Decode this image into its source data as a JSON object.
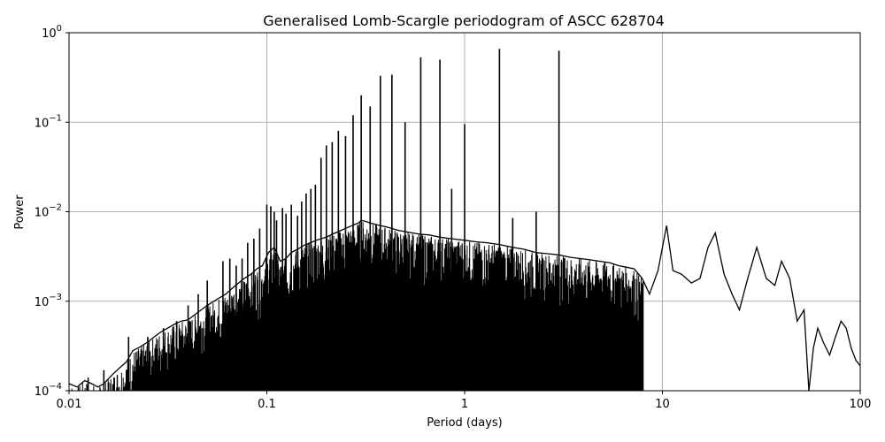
{
  "chart_data": {
    "type": "line",
    "title": "Generalised Lomb-Scargle periodogram of ASCC 628704",
    "xlabel": "Period (days)",
    "ylabel": "Power",
    "xscale": "log",
    "yscale": "log",
    "xlim": [
      0.01,
      100
    ],
    "ylim": [
      0.0001,
      1
    ],
    "grid": true,
    "x_ticks": [
      {
        "value": 0.01,
        "label": "0.01"
      },
      {
        "value": 0.1,
        "label": "0.1"
      },
      {
        "value": 1,
        "label": "1"
      },
      {
        "value": 10,
        "label": "10"
      },
      {
        "value": 100,
        "label": "100"
      }
    ],
    "y_ticks": [
      {
        "value": 0.0001,
        "base": "10",
        "exp": "−4"
      },
      {
        "value": 0.001,
        "base": "10",
        "exp": "−3"
      },
      {
        "value": 0.01,
        "base": "10",
        "exp": "−2"
      },
      {
        "value": 0.1,
        "base": "10",
        "exp": "−1"
      },
      {
        "value": 1,
        "base": "10",
        "exp": "0"
      }
    ],
    "line_color": "#000000",
    "series": [
      {
        "x": [
          0.01,
          0.011,
          0.012,
          0.013,
          0.014,
          0.015,
          0.0165,
          0.018,
          0.0195,
          0.021,
          0.023,
          0.025,
          0.027,
          0.029,
          0.0315,
          0.034,
          0.037,
          0.04,
          0.043,
          0.0465,
          0.05,
          0.054,
          0.058,
          0.062,
          0.067,
          0.072,
          0.077,
          0.083,
          0.089,
          0.095,
          0.102,
          0.109,
          0.117,
          0.125,
          0.133,
          0.143,
          0.154,
          0.166,
          0.178,
          0.188,
          0.2,
          0.214,
          0.23,
          0.25,
          0.27,
          0.29,
          0.3,
          0.315,
          0.3333,
          0.355,
          0.375,
          0.4,
          0.428,
          0.46,
          0.5,
          0.545,
          0.6,
          0.665,
          0.75,
          0.855,
          1.0,
          1.15,
          1.3,
          1.5,
          1.75,
          2.0,
          2.3,
          2.6,
          3.0,
          3.4,
          3.8,
          4.3,
          4.8,
          5.4,
          6.0,
          6.6,
          7.2,
          7.9,
          8.6,
          9.5,
          10.5,
          11.3,
          12.5,
          14.0,
          15.5,
          17.0,
          18.5,
          20.5,
          22.5,
          24.5,
          27.0,
          30.0,
          33.5,
          37.0,
          40.0,
          44.0,
          48.0,
          52.0,
          55.0,
          58.0,
          61.0,
          65.0,
          70.0,
          75.0,
          80.0,
          85.0,
          90.0,
          95.0,
          100.0
        ],
        "y": [
          0.00012,
          0.00011,
          0.00013,
          0.00012,
          0.00011,
          0.00012,
          0.00015,
          0.00018,
          0.00021,
          0.00028,
          0.00031,
          0.00035,
          0.0004,
          0.00045,
          0.0005,
          0.00055,
          0.0006,
          0.00062,
          0.0007,
          0.0008,
          0.0009,
          0.001,
          0.0011,
          0.0012,
          0.0014,
          0.0016,
          0.0018,
          0.002,
          0.0023,
          0.0025,
          0.0035,
          0.004,
          0.0028,
          0.003,
          0.0035,
          0.0038,
          0.0042,
          0.0045,
          0.0048,
          0.005,
          0.0052,
          0.0056,
          0.006,
          0.0065,
          0.007,
          0.0075,
          0.008,
          0.0078,
          0.0075,
          0.0072,
          0.007,
          0.0068,
          0.0065,
          0.0062,
          0.006,
          0.0058,
          0.0056,
          0.0055,
          0.0052,
          0.005,
          0.0048,
          0.0046,
          0.0045,
          0.0043,
          0.004,
          0.0038,
          0.0035,
          0.0034,
          0.0033,
          0.0031,
          0.003,
          0.0029,
          0.0028,
          0.0027,
          0.0025,
          0.0024,
          0.0023,
          0.0018,
          0.0012,
          0.0022,
          0.007,
          0.0022,
          0.002,
          0.0016,
          0.0018,
          0.004,
          0.0058,
          0.002,
          0.0012,
          0.0008,
          0.0018,
          0.004,
          0.0018,
          0.0015,
          0.0028,
          0.0018,
          0.0006,
          0.0008,
          0.0001,
          0.0003,
          0.0005,
          0.00035,
          0.00025,
          0.0004,
          0.0006,
          0.0005,
          0.0003,
          0.00022,
          0.00019
        ]
      }
    ],
    "peaks": [
      {
        "x": 0.1,
        "y": 0.012
      },
      {
        "x": 0.1047,
        "y": 0.0115
      },
      {
        "x": 0.109,
        "y": 0.01
      },
      {
        "x": 0.112,
        "y": 0.008
      },
      {
        "x": 0.12,
        "y": 0.011
      },
      {
        "x": 0.125,
        "y": 0.0095
      },
      {
        "x": 0.133,
        "y": 0.012
      },
      {
        "x": 0.143,
        "y": 0.009
      },
      {
        "x": 0.15,
        "y": 0.013
      },
      {
        "x": 0.158,
        "y": 0.016
      },
      {
        "x": 0.167,
        "y": 0.018
      },
      {
        "x": 0.176,
        "y": 0.02
      },
      {
        "x": 0.188,
        "y": 0.04
      },
      {
        "x": 0.2,
        "y": 0.055
      },
      {
        "x": 0.214,
        "y": 0.06
      },
      {
        "x": 0.23,
        "y": 0.08
      },
      {
        "x": 0.25,
        "y": 0.07
      },
      {
        "x": 0.273,
        "y": 0.12
      },
      {
        "x": 0.3,
        "y": 0.2
      },
      {
        "x": 0.333,
        "y": 0.15
      },
      {
        "x": 0.375,
        "y": 0.33
      },
      {
        "x": 0.429,
        "y": 0.34
      },
      {
        "x": 0.5,
        "y": 0.1
      },
      {
        "x": 0.6,
        "y": 0.53
      },
      {
        "x": 0.75,
        "y": 0.5
      },
      {
        "x": 1.0,
        "y": 0.095
      },
      {
        "x": 1.5,
        "y": 0.66
      },
      {
        "x": 3.0,
        "y": 0.63
      },
      {
        "x": 2.3,
        "y": 0.01
      },
      {
        "x": 1.75,
        "y": 0.0085
      },
      {
        "x": 0.86,
        "y": 0.018
      },
      {
        "x": 0.06,
        "y": 0.0028
      },
      {
        "x": 0.065,
        "y": 0.003
      },
      {
        "x": 0.07,
        "y": 0.0025
      },
      {
        "x": 0.075,
        "y": 0.003
      },
      {
        "x": 0.08,
        "y": 0.0045
      },
      {
        "x": 0.086,
        "y": 0.005
      },
      {
        "x": 0.092,
        "y": 0.0065
      },
      {
        "x": 0.05,
        "y": 0.0017
      },
      {
        "x": 0.045,
        "y": 0.0012
      },
      {
        "x": 0.04,
        "y": 0.0009
      },
      {
        "x": 0.035,
        "y": 0.0006
      },
      {
        "x": 0.03,
        "y": 0.0005
      },
      {
        "x": 0.025,
        "y": 0.0004
      },
      {
        "x": 0.02,
        "y": 0.0004
      },
      {
        "x": 0.015,
        "y": 0.00017
      },
      {
        "x": 0.0125,
        "y": 0.00014
      }
    ]
  }
}
